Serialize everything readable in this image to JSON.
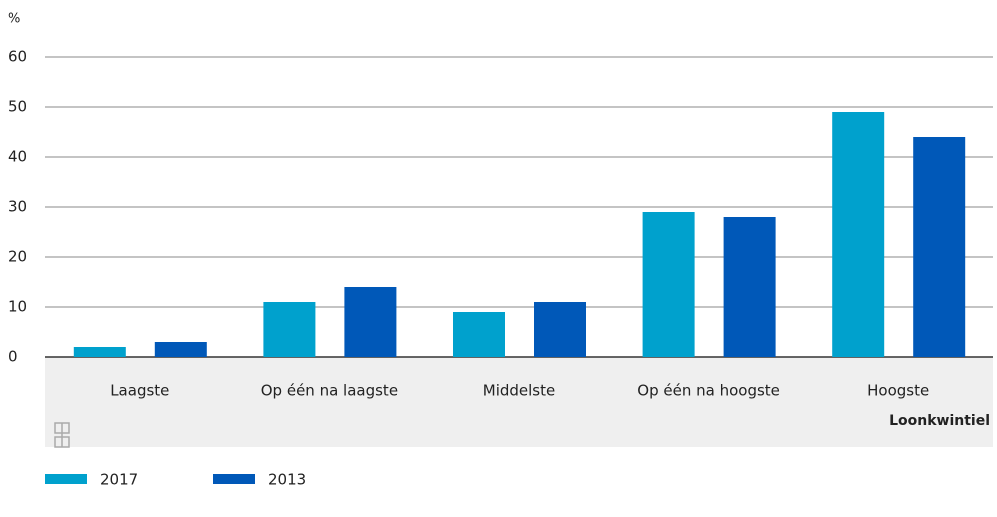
{
  "chart_data": {
    "type": "bar",
    "y_unit": "%",
    "x_label": "Loonkwintiel",
    "categories": [
      "Laagste",
      "Op één na laagste",
      "Middelste",
      "Op één na hoogste",
      "Hoogste"
    ],
    "series": [
      {
        "name": "2017",
        "color": "#00a1cd",
        "values": [
          2,
          11,
          9,
          29,
          49
        ]
      },
      {
        "name": "2013",
        "color": "#0058b8",
        "values": [
          3,
          14,
          11,
          28,
          44
        ]
      }
    ],
    "ylim": [
      0,
      60
    ],
    "yticks": [
      0,
      10,
      20,
      30,
      40,
      50,
      60
    ],
    "grid": true
  }
}
